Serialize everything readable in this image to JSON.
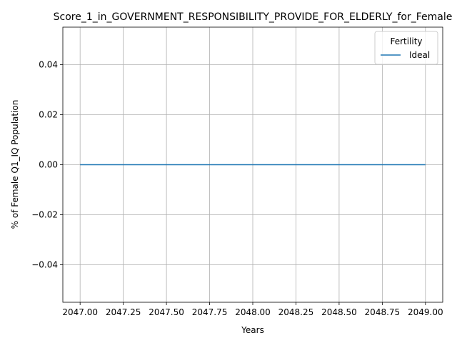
{
  "chart_data": {
    "type": "line",
    "title": "Score_1_in_GOVERNMENT_RESPONSIBILITY_PROVIDE_FOR_ELDERLY_for_Female",
    "xlabel": "Years",
    "ylabel": "% of Female Q1_IQ Population",
    "xlim": [
      2046.9,
      2049.1
    ],
    "ylim": [
      -0.055,
      0.055
    ],
    "x_ticks": [
      "2047.00",
      "2047.25",
      "2047.50",
      "2047.75",
      "2048.00",
      "2048.25",
      "2048.50",
      "2048.75",
      "2049.00"
    ],
    "y_ticks": [
      "0.04",
      "0.02",
      "0.00",
      "−0.02",
      "−0.04"
    ],
    "legend": {
      "title": "Fertility",
      "placement": "top-right"
    },
    "grid": true,
    "series": [
      {
        "name": "Ideal",
        "color": "#1f77b4",
        "x": [
          2047,
          2048,
          2049
        ],
        "y": [
          0,
          0,
          0
        ]
      }
    ]
  }
}
